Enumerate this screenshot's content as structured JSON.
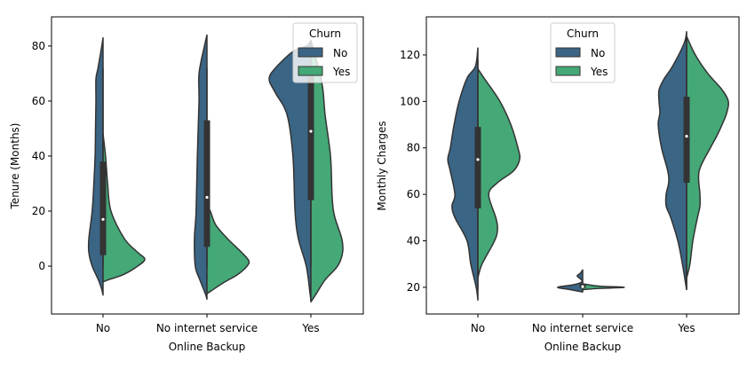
{
  "colors": {
    "No": "#3b6585",
    "Yes": "#44a877",
    "outline": "#333333",
    "box": "#333333"
  },
  "chart_data": [
    {
      "type": "violin",
      "split": true,
      "xlabel": "Online Backup",
      "ylabel": "Tenure (Months)",
      "categories": [
        "No",
        "No internet service",
        "Yes"
      ],
      "ylim": [
        -17.4,
        90.6
      ],
      "yticks": [
        0,
        20,
        40,
        60,
        80
      ],
      "ytick_labels": [
        "0",
        "20",
        "40",
        "60",
        "80"
      ],
      "legend": {
        "title": "Churn",
        "entries": [
          "No",
          "Yes"
        ],
        "placement": "upper right"
      },
      "groups": [
        {
          "category": "No",
          "No": [
            [
              83,
              0
            ],
            [
              80,
              0.03
            ],
            [
              72,
              0.12
            ],
            [
              68,
              0.17
            ],
            [
              60,
              0.17
            ],
            [
              50,
              0.18
            ],
            [
              40,
              0.19
            ],
            [
              30,
              0.22
            ],
            [
              20,
              0.26
            ],
            [
              10,
              0.34
            ],
            [
              5,
              0.34
            ],
            [
              0,
              0.26
            ],
            [
              -5,
              0.11
            ],
            [
              -8,
              0.04
            ],
            [
              -10.5,
              0
            ]
          ],
          "Yes": [
            [
              48,
              0
            ],
            [
              40,
              0.06
            ],
            [
              30,
              0.11
            ],
            [
              20,
              0.19
            ],
            [
              10,
              0.51
            ],
            [
              5,
              0.83
            ],
            [
              2.5,
              1.0
            ],
            [
              0,
              0.83
            ],
            [
              -3,
              0.5
            ],
            [
              -5,
              0.12
            ],
            [
              -5.7,
              0
            ]
          ],
          "box": {
            "q1": 4,
            "median": 17,
            "q3": 38,
            "whisker_low": 0,
            "whisker_high": 72
          }
        },
        {
          "category": "No internet service",
          "No": [
            [
              84,
              0
            ],
            [
              80,
              0.06
            ],
            [
              70,
              0.19
            ],
            [
              60,
              0.19
            ],
            [
              40,
              0.23
            ],
            [
              20,
              0.26
            ],
            [
              10,
              0.3
            ],
            [
              0,
              0.28
            ],
            [
              -5,
              0.17
            ],
            [
              -10,
              0.04
            ],
            [
              -12,
              0
            ]
          ],
          "Yes": [
            [
              22,
              0
            ],
            [
              20,
              0.08
            ],
            [
              15,
              0.21
            ],
            [
              10,
              0.49
            ],
            [
              5,
              0.83
            ],
            [
              2,
              1.0
            ],
            [
              0,
              0.96
            ],
            [
              -3,
              0.74
            ],
            [
              -6,
              0.4
            ],
            [
              -9,
              0.1
            ],
            [
              -10,
              0
            ]
          ],
          "box": {
            "q1": 7,
            "median": 25,
            "q3": 53,
            "whisker_low": 0,
            "whisker_high": 72
          }
        },
        {
          "category": "Yes",
          "No": [
            [
              82,
              0
            ],
            [
              80,
              0.1
            ],
            [
              78,
              0.43
            ],
            [
              72,
              0.85
            ],
            [
              68,
              1.0
            ],
            [
              63,
              0.85
            ],
            [
              55,
              0.57
            ],
            [
              40,
              0.43
            ],
            [
              20,
              0.38
            ],
            [
              10,
              0.3
            ],
            [
              0,
              0.11
            ],
            [
              -10,
              0.02
            ],
            [
              -12.5,
              0
            ]
          ],
          "Yes": [
            [
              82,
              0
            ],
            [
              75,
              0.13
            ],
            [
              65,
              0.28
            ],
            [
              55,
              0.34
            ],
            [
              40,
              0.47
            ],
            [
              25,
              0.51
            ],
            [
              18,
              0.57
            ],
            [
              10,
              0.74
            ],
            [
              5,
              0.76
            ],
            [
              0,
              0.64
            ],
            [
              -5,
              0.34
            ],
            [
              -10,
              0.13
            ],
            [
              -13,
              0
            ]
          ],
          "box": {
            "q1": 24,
            "median": 49,
            "q3": 72,
            "whisker_low": 0,
            "whisker_high": 72
          }
        }
      ]
    },
    {
      "type": "violin",
      "split": true,
      "xlabel": "Online Backup",
      "ylabel": "Monthly Charges",
      "categories": [
        "No",
        "No internet service",
        "Yes"
      ],
      "ylim": [
        8.5,
        136.4
      ],
      "yticks": [
        20,
        40,
        60,
        80,
        100,
        120
      ],
      "ytick_labels": [
        "20",
        "40",
        "60",
        "80",
        "100",
        "120"
      ],
      "legend": {
        "title": "Churn",
        "entries": [
          "No",
          "Yes"
        ],
        "placement": "upper center"
      },
      "groups": [
        {
          "category": "No",
          "No": [
            [
              123,
              0
            ],
            [
              115,
              0.06
            ],
            [
              110,
              0.26
            ],
            [
              100,
              0.45
            ],
            [
              90,
              0.57
            ],
            [
              80,
              0.66
            ],
            [
              75,
              0.72
            ],
            [
              70,
              0.66
            ],
            [
              60,
              0.55
            ],
            [
              55,
              0.62
            ],
            [
              50,
              0.55
            ],
            [
              40,
              0.26
            ],
            [
              30,
              0.17
            ],
            [
              20,
              0.04
            ],
            [
              14.5,
              0
            ]
          ],
          "Yes": [
            [
              114,
              0
            ],
            [
              110,
              0.15
            ],
            [
              100,
              0.53
            ],
            [
              90,
              0.79
            ],
            [
              80,
              0.96
            ],
            [
              75,
              1.0
            ],
            [
              70,
              0.85
            ],
            [
              65,
              0.47
            ],
            [
              60,
              0.26
            ],
            [
              50,
              0.43
            ],
            [
              45,
              0.47
            ],
            [
              40,
              0.4
            ],
            [
              30,
              0.1
            ],
            [
              24,
              0
            ]
          ],
          "box": {
            "q1": 54,
            "median": 75,
            "q3": 89,
            "whisker_low": 19,
            "whisker_high": 118
          }
        },
        {
          "category": "No internet service",
          "No": [
            [
              27.5,
              0
            ],
            [
              26,
              0.06
            ],
            [
              25,
              0.13
            ],
            [
              24,
              0.08
            ],
            [
              23,
              0.02
            ],
            [
              22,
              0.05
            ],
            [
              21,
              0.25
            ],
            [
              20,
              0.6
            ],
            [
              19,
              0.3
            ],
            [
              18,
              0
            ]
          ],
          "Yes": [
            [
              21.5,
              0
            ],
            [
              20.5,
              0.4
            ],
            [
              20,
              1.0
            ],
            [
              19.5,
              0.4
            ],
            [
              19,
              0
            ]
          ],
          "box": {
            "q1": 19.7,
            "median": 20.3,
            "q3": 21.5,
            "whisker_low": 18.5,
            "whisker_high": 22
          }
        },
        {
          "category": "Yes",
          "No": [
            [
              130,
              0
            ],
            [
              125,
              0.06
            ],
            [
              115,
              0.34
            ],
            [
              110,
              0.53
            ],
            [
              105,
              0.66
            ],
            [
              100,
              0.66
            ],
            [
              95,
              0.64
            ],
            [
              90,
              0.68
            ],
            [
              80,
              0.6
            ],
            [
              70,
              0.45
            ],
            [
              65,
              0.43
            ],
            [
              60,
              0.49
            ],
            [
              55,
              0.49
            ],
            [
              50,
              0.38
            ],
            [
              40,
              0.21
            ],
            [
              30,
              0.1
            ],
            [
              19,
              0
            ]
          ],
          "Yes": [
            [
              128,
              0
            ],
            [
              120,
              0.21
            ],
            [
              112,
              0.51
            ],
            [
              105,
              0.85
            ],
            [
              100,
              1.0
            ],
            [
              95,
              0.96
            ],
            [
              90,
              0.85
            ],
            [
              85,
              0.72
            ],
            [
              80,
              0.57
            ],
            [
              70,
              0.3
            ],
            [
              60,
              0.32
            ],
            [
              55,
              0.32
            ],
            [
              50,
              0.26
            ],
            [
              40,
              0.15
            ],
            [
              30,
              0.08
            ],
            [
              24,
              0
            ]
          ],
          "box": {
            "q1": 65,
            "median": 85,
            "q3": 102,
            "whisker_low": 19,
            "whisker_high": 128
          }
        }
      ]
    }
  ]
}
